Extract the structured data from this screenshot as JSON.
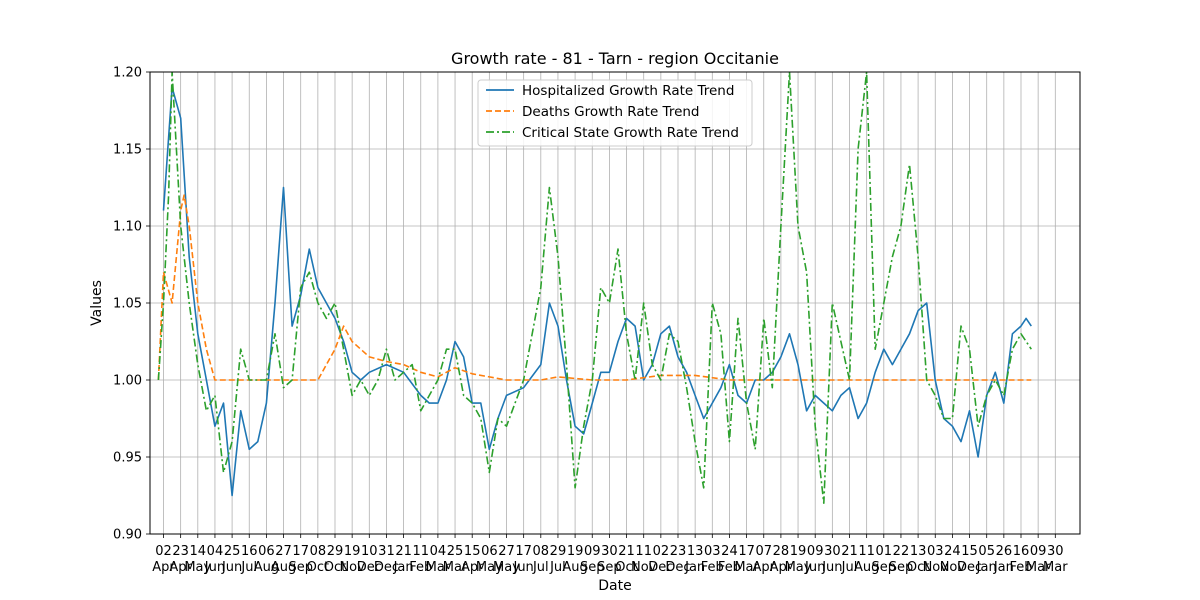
{
  "chart_data": {
    "type": "line",
    "title": "Growth rate - 81 - Tarn - region Occitanie",
    "xlabel": "Date",
    "ylabel": "Values",
    "ylim": [
      0.9,
      1.2
    ],
    "yticks": [
      0.9,
      0.95,
      1.0,
      1.05,
      1.1,
      1.15,
      1.2
    ],
    "grid": true,
    "legend_position": "top-center",
    "xticks": [
      {
        "day": "02",
        "month": "Apr"
      },
      {
        "day": "23",
        "month": "Apr"
      },
      {
        "day": "14",
        "month": "May"
      },
      {
        "day": "04",
        "month": "Jun"
      },
      {
        "day": "25",
        "month": "Jun"
      },
      {
        "day": "16",
        "month": "Jul"
      },
      {
        "day": "06",
        "month": "Aug"
      },
      {
        "day": "27",
        "month": "Aug"
      },
      {
        "day": "17",
        "month": "Sep"
      },
      {
        "day": "08",
        "month": "Oct"
      },
      {
        "day": "29",
        "month": "Oct"
      },
      {
        "day": "19",
        "month": "Nov"
      },
      {
        "day": "10",
        "month": "Dec"
      },
      {
        "day": "31",
        "month": "Dec"
      },
      {
        "day": "21",
        "month": "Jan"
      },
      {
        "day": "11",
        "month": "Feb"
      },
      {
        "day": "04",
        "month": "Mar"
      },
      {
        "day": "25",
        "month": "Mar"
      },
      {
        "day": "15",
        "month": "Apr"
      },
      {
        "day": "06",
        "month": "May"
      },
      {
        "day": "27",
        "month": "May"
      },
      {
        "day": "17",
        "month": "Jun"
      },
      {
        "day": "08",
        "month": "Jul"
      },
      {
        "day": "29",
        "month": "Jul"
      },
      {
        "day": "19",
        "month": "Aug"
      },
      {
        "day": "09",
        "month": "Sep"
      },
      {
        "day": "30",
        "month": "Sep"
      },
      {
        "day": "21",
        "month": "Oct"
      },
      {
        "day": "11",
        "month": "Nov"
      },
      {
        "day": "02",
        "month": "Dec"
      },
      {
        "day": "23",
        "month": "Dec"
      },
      {
        "day": "13",
        "month": "Jan"
      },
      {
        "day": "03",
        "month": "Feb"
      },
      {
        "day": "24",
        "month": "Feb"
      },
      {
        "day": "17",
        "month": "Mar"
      },
      {
        "day": "07",
        "month": "Apr"
      },
      {
        "day": "28",
        "month": "Apr"
      },
      {
        "day": "19",
        "month": "May"
      },
      {
        "day": "09",
        "month": "Jun"
      },
      {
        "day": "30",
        "month": "Jun"
      },
      {
        "day": "21",
        "month": "Jul"
      },
      {
        "day": "11",
        "month": "Aug"
      },
      {
        "day": "01",
        "month": "Sep"
      },
      {
        "day": "22",
        "month": "Sep"
      },
      {
        "day": "13",
        "month": "Oct"
      },
      {
        "day": "03",
        "month": "Nov"
      },
      {
        "day": "24",
        "month": "Nov"
      },
      {
        "day": "15",
        "month": "Dec"
      },
      {
        "day": "05",
        "month": "Jan"
      },
      {
        "day": "26",
        "month": "Jan"
      },
      {
        "day": "16",
        "month": "Feb"
      },
      {
        "day": "09",
        "month": "Mar"
      },
      {
        "day": "30",
        "month": "Mar"
      }
    ],
    "series": [
      {
        "name": "Hospitalized Growth Rate Trend",
        "color": "#1f77b4",
        "style": "solid",
        "points": [
          [
            0,
            1.11
          ],
          [
            0.5,
            1.19
          ],
          [
            1,
            1.17
          ],
          [
            1.5,
            1.08
          ],
          [
            2,
            1.03
          ],
          [
            2.5,
            1.0
          ],
          [
            3,
            0.97
          ],
          [
            3.5,
            0.985
          ],
          [
            4,
            0.925
          ],
          [
            4.5,
            0.98
          ],
          [
            5,
            0.955
          ],
          [
            5.5,
            0.96
          ],
          [
            6,
            0.985
          ],
          [
            6.5,
            1.05
          ],
          [
            7,
            1.125
          ],
          [
            7.3,
            1.07
          ],
          [
            7.5,
            1.035
          ],
          [
            8,
            1.055
          ],
          [
            8.5,
            1.085
          ],
          [
            9,
            1.06
          ],
          [
            9.5,
            1.05
          ],
          [
            10,
            1.04
          ],
          [
            10.5,
            1.025
          ],
          [
            11,
            1.005
          ],
          [
            11.5,
            1.0
          ],
          [
            12,
            1.005
          ],
          [
            13,
            1.01
          ],
          [
            14,
            1.005
          ],
          [
            15,
            0.99
          ],
          [
            15.5,
            0.985
          ],
          [
            16,
            0.985
          ],
          [
            16.5,
            1.0
          ],
          [
            17,
            1.025
          ],
          [
            17.5,
            1.015
          ],
          [
            18,
            0.985
          ],
          [
            18.5,
            0.985
          ],
          [
            19,
            0.955
          ],
          [
            19.5,
            0.975
          ],
          [
            20,
            0.99
          ],
          [
            21,
            0.995
          ],
          [
            22,
            1.01
          ],
          [
            22.5,
            1.05
          ],
          [
            23,
            1.035
          ],
          [
            23.5,
            1.0
          ],
          [
            24,
            0.97
          ],
          [
            24.5,
            0.965
          ],
          [
            25,
            0.985
          ],
          [
            25.5,
            1.005
          ],
          [
            26,
            1.005
          ],
          [
            26.5,
            1.025
          ],
          [
            27,
            1.04
          ],
          [
            27.5,
            1.035
          ],
          [
            28,
            1.0
          ],
          [
            28.5,
            1.01
          ],
          [
            29,
            1.03
          ],
          [
            29.5,
            1.035
          ],
          [
            30,
            1.015
          ],
          [
            30.5,
            1.005
          ],
          [
            31,
            0.99
          ],
          [
            31.5,
            0.975
          ],
          [
            32,
            0.985
          ],
          [
            32.5,
            0.995
          ],
          [
            33,
            1.01
          ],
          [
            33.5,
            0.99
          ],
          [
            34,
            0.985
          ],
          [
            34.5,
            1.0
          ],
          [
            35,
            1.0
          ],
          [
            35.5,
            1.005
          ],
          [
            36,
            1.015
          ],
          [
            36.5,
            1.03
          ],
          [
            37,
            1.01
          ],
          [
            37.5,
            0.98
          ],
          [
            38,
            0.99
          ],
          [
            38.5,
            0.985
          ],
          [
            39,
            0.98
          ],
          [
            39.5,
            0.99
          ],
          [
            40,
            0.995
          ],
          [
            40.5,
            0.975
          ],
          [
            41,
            0.985
          ],
          [
            41.5,
            1.005
          ],
          [
            42,
            1.02
          ],
          [
            42.5,
            1.01
          ],
          [
            43,
            1.02
          ],
          [
            43.5,
            1.03
          ],
          [
            44,
            1.045
          ],
          [
            44.5,
            1.05
          ],
          [
            45,
            1.0
          ],
          [
            45.5,
            0.975
          ],
          [
            46,
            0.97
          ],
          [
            46.5,
            0.96
          ],
          [
            47,
            0.98
          ],
          [
            47.5,
            0.95
          ],
          [
            48,
            0.99
          ],
          [
            48.5,
            1.005
          ],
          [
            49,
            0.985
          ],
          [
            49.5,
            1.03
          ],
          [
            50,
            1.035
          ],
          [
            50.3,
            1.04
          ],
          [
            50.6,
            1.035
          ]
        ]
      },
      {
        "name": "Deaths Growth Rate Trend",
        "color": "#ff7f0e",
        "style": "dashed",
        "points": [
          [
            -0.3,
            1.0
          ],
          [
            0,
            1.07
          ],
          [
            0.5,
            1.05
          ],
          [
            1,
            1.11
          ],
          [
            1.2,
            1.12
          ],
          [
            1.5,
            1.1
          ],
          [
            2,
            1.05
          ],
          [
            2.5,
            1.02
          ],
          [
            3,
            1.0
          ],
          [
            4,
            1.0
          ],
          [
            5,
            1.0
          ],
          [
            6,
            1.0
          ],
          [
            7,
            1.0
          ],
          [
            8,
            1.0
          ],
          [
            9,
            1.0
          ],
          [
            9.5,
            1.01
          ],
          [
            10,
            1.02
          ],
          [
            10.5,
            1.035
          ],
          [
            11,
            1.025
          ],
          [
            11.5,
            1.02
          ],
          [
            12,
            1.015
          ],
          [
            13,
            1.012
          ],
          [
            14,
            1.01
          ],
          [
            15,
            1.005
          ],
          [
            16,
            1.002
          ],
          [
            17,
            1.008
          ],
          [
            18,
            1.004
          ],
          [
            19,
            1.002
          ],
          [
            20,
            1.0
          ],
          [
            22,
            1.0
          ],
          [
            23,
            1.002
          ],
          [
            25,
            1.0
          ],
          [
            27,
            1.0
          ],
          [
            29,
            1.003
          ],
          [
            31,
            1.003
          ],
          [
            33,
            1.0
          ],
          [
            35,
            1.0
          ],
          [
            37,
            1.0
          ],
          [
            39,
            1.0
          ],
          [
            41,
            1.0
          ],
          [
            43,
            1.0
          ],
          [
            45,
            1.0
          ],
          [
            47,
            1.0
          ],
          [
            49,
            1.0
          ],
          [
            50.6,
            1.0
          ]
        ]
      },
      {
        "name": "Critical State Growth Rate Trend",
        "color": "#2ca02c",
        "style": "dashdot",
        "points": [
          [
            -0.3,
            1.0
          ],
          [
            0,
            1.05
          ],
          [
            0.3,
            1.12
          ],
          [
            0.5,
            1.2
          ],
          [
            1,
            1.1
          ],
          [
            1.5,
            1.05
          ],
          [
            2,
            1.01
          ],
          [
            2.5,
            0.98
          ],
          [
            3,
            0.99
          ],
          [
            3.5,
            0.94
          ],
          [
            4,
            0.96
          ],
          [
            4.5,
            1.02
          ],
          [
            5,
            1.0
          ],
          [
            6,
            1.0
          ],
          [
            6.5,
            1.03
          ],
          [
            7,
            0.995
          ],
          [
            7.5,
            1.0
          ],
          [
            8,
            1.06
          ],
          [
            8.5,
            1.07
          ],
          [
            9,
            1.05
          ],
          [
            9.5,
            1.04
          ],
          [
            10,
            1.05
          ],
          [
            10.5,
            1.02
          ],
          [
            11,
            0.99
          ],
          [
            11.5,
            1.0
          ],
          [
            12,
            0.99
          ],
          [
            12.5,
            1.0
          ],
          [
            13,
            1.02
          ],
          [
            13.5,
            1.0
          ],
          [
            14,
            1.005
          ],
          [
            14.5,
            1.01
          ],
          [
            15,
            0.98
          ],
          [
            15.5,
            0.99
          ],
          [
            16,
            1.0
          ],
          [
            16.5,
            1.02
          ],
          [
            17,
            1.02
          ],
          [
            17.5,
            0.99
          ],
          [
            18,
            0.985
          ],
          [
            18.5,
            0.975
          ],
          [
            19,
            0.94
          ],
          [
            19.5,
            0.975
          ],
          [
            20,
            0.97
          ],
          [
            21,
            1.0
          ],
          [
            22,
            1.06
          ],
          [
            22.5,
            1.125
          ],
          [
            23,
            1.08
          ],
          [
            23.5,
            1.01
          ],
          [
            24,
            0.93
          ],
          [
            24.5,
            0.97
          ],
          [
            25,
            1.0
          ],
          [
            25.5,
            1.06
          ],
          [
            26,
            1.05
          ],
          [
            26.5,
            1.085
          ],
          [
            27,
            1.03
          ],
          [
            27.5,
            1.0
          ],
          [
            28,
            1.05
          ],
          [
            28.5,
            1.01
          ],
          [
            29,
            1.0
          ],
          [
            29.5,
            1.03
          ],
          [
            30,
            1.025
          ],
          [
            30.5,
            0.995
          ],
          [
            31,
            0.96
          ],
          [
            31.5,
            0.93
          ],
          [
            32,
            1.05
          ],
          [
            32.5,
            1.03
          ],
          [
            33,
            0.96
          ],
          [
            33.5,
            1.04
          ],
          [
            34,
            0.985
          ],
          [
            34.5,
            0.955
          ],
          [
            35,
            1.04
          ],
          [
            35.5,
            0.995
          ],
          [
            36,
            1.1
          ],
          [
            36.5,
            1.2
          ],
          [
            37,
            1.1
          ],
          [
            37.5,
            1.07
          ],
          [
            38,
            0.97
          ],
          [
            38.5,
            0.92
          ],
          [
            39,
            1.05
          ],
          [
            39.5,
            1.025
          ],
          [
            40,
            1.0
          ],
          [
            40.5,
            1.15
          ],
          [
            41,
            1.2
          ],
          [
            41.5,
            1.02
          ],
          [
            42,
            1.05
          ],
          [
            42.5,
            1.08
          ],
          [
            43,
            1.1
          ],
          [
            43.5,
            1.14
          ],
          [
            44,
            1.08
          ],
          [
            44.5,
            1.0
          ],
          [
            45,
            0.99
          ],
          [
            45.5,
            0.975
          ],
          [
            46,
            0.975
          ],
          [
            46.5,
            1.035
          ],
          [
            47,
            1.02
          ],
          [
            47.5,
            0.97
          ],
          [
            48,
            0.99
          ],
          [
            48.5,
            1.0
          ],
          [
            49,
            0.99
          ],
          [
            49.5,
            1.02
          ],
          [
            50,
            1.03
          ],
          [
            50.6,
            1.02
          ]
        ]
      }
    ]
  }
}
